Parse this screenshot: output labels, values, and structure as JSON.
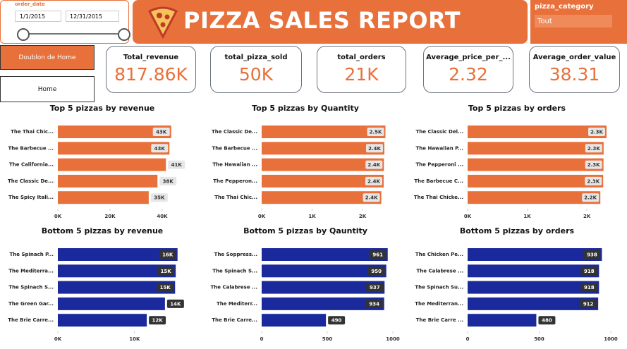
{
  "header": {
    "title": "PIZZA SALES REPORT"
  },
  "date_slicer": {
    "title": "order_date",
    "start": "1/1/2015",
    "end": "12/31/2015"
  },
  "category_slicer": {
    "title": "pizza_category",
    "selection": "Tout"
  },
  "buttons": [
    "Doublon de Home",
    "Home"
  ],
  "cards": [
    {
      "label": "Total_revenue",
      "value": "817.86K"
    },
    {
      "label": "total_pizza_sold",
      "value": "50K"
    },
    {
      "label": "total_orders",
      "value": "21K"
    },
    {
      "label": "Average_price_per_...",
      "value": "2.32"
    },
    {
      "label": "Average_order_value",
      "value": "38.31"
    }
  ],
  "chart_data": [
    {
      "type": "bar",
      "title": "Top 5 pizzas by revenue",
      "color": "#e8703a",
      "categories": [
        "The Thai Chic...",
        "The Barbecue ...",
        "The California...",
        "The Classic De...",
        "The Spicy Itali..."
      ],
      "values": [
        43434,
        42768,
        41410,
        38180,
        34831
      ],
      "value_labels": [
        "43K",
        "43K",
        "41K",
        "38K",
        "35K"
      ],
      "xlim": [
        0,
        50000
      ],
      "xticks": [
        {
          "value": 0,
          "label": "0K"
        },
        {
          "value": 20000,
          "label": "20K"
        },
        {
          "value": 40000,
          "label": "40K"
        }
      ]
    },
    {
      "type": "bar",
      "title": "Top 5 pizzas by Quantity",
      "color": "#e8703a",
      "categories": [
        "The Classic De...",
        "The Barbecue ...",
        "The Hawaiian ...",
        "The Pepperon...",
        "The Thai Chic..."
      ],
      "values": [
        2453,
        2432,
        2422,
        2418,
        2371
      ],
      "value_labels": [
        "2.5K",
        "2.4K",
        "2.4K",
        "2.4K",
        "2.4K"
      ],
      "xlim": [
        0,
        2600
      ],
      "xticks": [
        {
          "value": 0,
          "label": "0K"
        },
        {
          "value": 1000,
          "label": "1K"
        },
        {
          "value": 2000,
          "label": "2K"
        }
      ]
    },
    {
      "type": "bar",
      "title": "Top 5 pizzas by orders",
      "color": "#e8703a",
      "categories": [
        "The Classic Del...",
        "The Hawaiian P...",
        "The Pepperoni ...",
        "The Barbecue C...",
        "The Thai Chicke..."
      ],
      "values": [
        2329,
        2280,
        2278,
        2273,
        2225
      ],
      "value_labels": [
        "2.3K",
        "2.3K",
        "2.3K",
        "2.3K",
        "2.2K"
      ],
      "xlim": [
        0,
        2400
      ],
      "xticks": [
        {
          "value": 0,
          "label": "0K"
        },
        {
          "value": 1000,
          "label": "1K"
        },
        {
          "value": 2000,
          "label": "2K"
        }
      ]
    },
    {
      "type": "bar",
      "title": "Bottom 5 pizzas by revenue",
      "color": "#1a2a9c",
      "categories": [
        "The Spinach P...",
        "The Mediterra...",
        "The Spinach S...",
        "The Green Gar...",
        "The Brie Carre..."
      ],
      "values": [
        15596,
        15360,
        15278,
        13956,
        11588
      ],
      "value_labels": [
        "16K",
        "15K",
        "15K",
        "14K",
        "12K"
      ],
      "xlim": [
        0,
        17000
      ],
      "xticks": [
        {
          "value": 0,
          "label": "0K"
        },
        {
          "value": 10000,
          "label": "10K"
        }
      ]
    },
    {
      "type": "bar",
      "title": "Bottom 5 pizzas by Qauntity",
      "color": "#1a2a9c",
      "categories": [
        "The Soppress...",
        "The Spinach S...",
        "The Calabrese ...",
        "The Mediterr...",
        "The Brie Carre..."
      ],
      "values": [
        961,
        950,
        937,
        934,
        490
      ],
      "xlim": [
        0,
        1000
      ],
      "xticks": [
        0,
        500,
        1000
      ]
    },
    {
      "type": "bar",
      "title": "Bottom 5 pizzas by orders",
      "color": "#1a2a9c",
      "categories": [
        "The Chicken Pe...",
        "The Calabrese ...",
        "The Spinach Su...",
        "The Mediterran...",
        "The Brie Carre ..."
      ],
      "values": [
        938,
        918,
        918,
        912,
        480
      ],
      "xlim": [
        0,
        1000
      ],
      "xticks": [
        0,
        500,
        1000
      ]
    }
  ]
}
